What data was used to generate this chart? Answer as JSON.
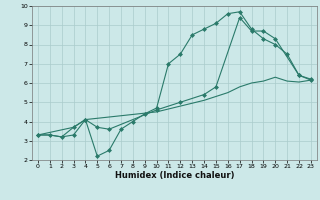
{
  "xlabel": "Humidex (Indice chaleur)",
  "bg_color": "#cce8e8",
  "grid_color": "#aacccc",
  "line_color": "#2a7a6a",
  "xlim": [
    -0.5,
    23.5
  ],
  "ylim": [
    2,
    10
  ],
  "xticks": [
    0,
    1,
    2,
    3,
    4,
    5,
    6,
    7,
    8,
    9,
    10,
    11,
    12,
    13,
    14,
    15,
    16,
    17,
    18,
    19,
    20,
    21,
    22,
    23
  ],
  "yticks": [
    2,
    3,
    4,
    5,
    6,
    7,
    8,
    9,
    10
  ],
  "line1_x": [
    0,
    1,
    2,
    3,
    4,
    5,
    6,
    7,
    8,
    9,
    10,
    11,
    12,
    13,
    14,
    15,
    16,
    17,
    18,
    19,
    20,
    21,
    22,
    23
  ],
  "line1_y": [
    3.3,
    3.3,
    3.2,
    3.3,
    4.1,
    2.2,
    2.5,
    3.6,
    4.0,
    4.4,
    4.7,
    7.0,
    7.5,
    8.5,
    8.8,
    9.1,
    9.6,
    9.7,
    8.8,
    8.3,
    8.0,
    7.5,
    6.4,
    6.2
  ],
  "line2_x": [
    0,
    1,
    2,
    3,
    4,
    10,
    12,
    14,
    16,
    17,
    18,
    19,
    20,
    21,
    22,
    23
  ],
  "line2_y": [
    3.3,
    3.3,
    3.2,
    3.7,
    4.1,
    4.5,
    4.8,
    5.1,
    5.5,
    5.8,
    6.0,
    6.1,
    6.3,
    6.1,
    6.05,
    6.15
  ],
  "line3_x": [
    0,
    3,
    4,
    5,
    6,
    10,
    12,
    14,
    15,
    17,
    18,
    19,
    20,
    22,
    23
  ],
  "line3_y": [
    3.3,
    3.7,
    4.1,
    3.7,
    3.6,
    4.6,
    5.0,
    5.4,
    5.8,
    9.4,
    8.7,
    8.7,
    8.3,
    6.4,
    6.15
  ]
}
